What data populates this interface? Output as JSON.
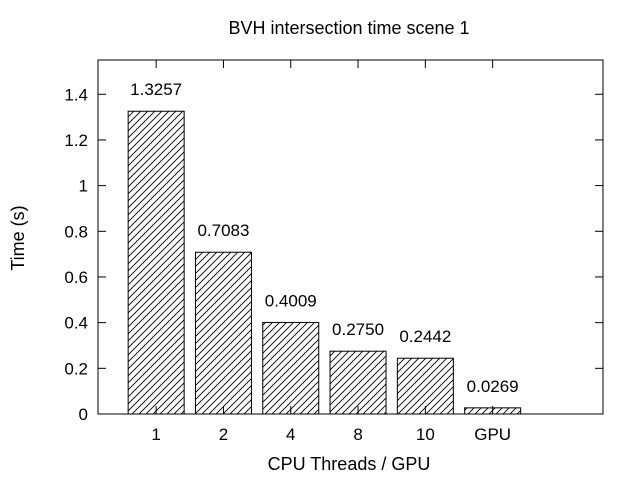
{
  "chart_data": {
    "type": "bar",
    "title": "BVH intersection time scene 1",
    "xlabel": "CPU Threads / GPU",
    "ylabel": "Time (s)",
    "categories": [
      "1",
      "2",
      "4",
      "8",
      "10",
      "GPU"
    ],
    "values": [
      1.3257,
      0.7083,
      0.4009,
      0.275,
      0.2442,
      0.0269
    ],
    "value_labels": [
      "1.3257",
      "0.7083",
      "0.4009",
      "0.2750",
      "0.2442",
      "0.0269"
    ],
    "ylim": [
      0,
      1.55
    ],
    "yticks": [
      0,
      0.2,
      0.4,
      0.6,
      0.8,
      1,
      1.2,
      1.4
    ],
    "ytick_labels": [
      "0",
      "0.2",
      "0.4",
      "0.6",
      "0.8",
      "1",
      "1.2",
      "1.4"
    ],
    "grid": false,
    "legend": "none",
    "bar_fill": "diagonal-hatch",
    "colors": {
      "bar_stroke": "#000000",
      "hatch": "#000000",
      "background": "#ffffff"
    }
  }
}
